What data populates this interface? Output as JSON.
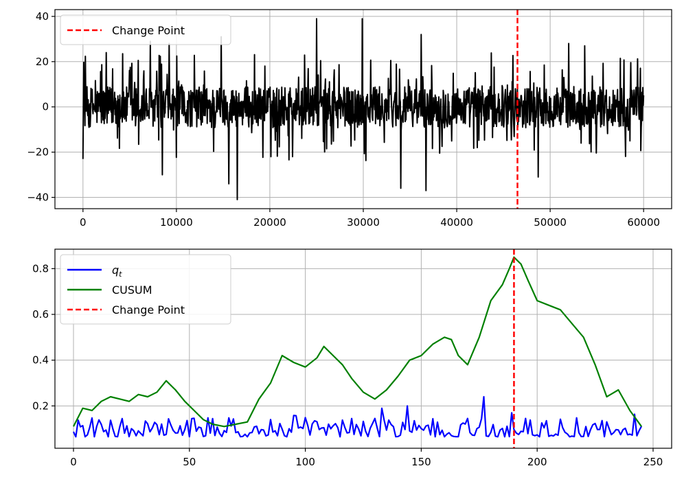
{
  "chart_data": [
    {
      "type": "line",
      "title": "",
      "xlabel": "",
      "ylabel": "",
      "xlim": [
        -3000,
        63000
      ],
      "ylim": [
        -45,
        43
      ],
      "xticks": [
        0,
        10000,
        20000,
        30000,
        40000,
        50000,
        60000
      ],
      "yticks": [
        -40,
        -20,
        0,
        20,
        40
      ],
      "grid": true,
      "legend_placement": "upper-left",
      "series": [
        {
          "kind": "signal",
          "color": "#000000",
          "x_range": [
            0,
            60000
          ],
          "value_range": [
            -41,
            39
          ],
          "peaks": [
            {
              "x": 25000,
              "y": 39
            },
            {
              "x": 29900,
              "y": 39
            },
            {
              "x": 16500,
              "y": -41
            },
            {
              "x": 36700,
              "y": -37
            },
            {
              "x": 34000,
              "y": -36
            },
            {
              "x": 15600,
              "y": -34
            },
            {
              "x": 8500,
              "y": -30
            },
            {
              "x": 48700,
              "y": -31
            },
            {
              "x": 7200,
              "y": 29
            },
            {
              "x": 9200,
              "y": 28
            },
            {
              "x": 14800,
              "y": 31
            },
            {
              "x": 36200,
              "y": 32
            },
            {
              "x": 52000,
              "y": 28
            },
            {
              "x": 53700,
              "y": 27
            }
          ]
        },
        {
          "name": "Change Point",
          "kind": "vline",
          "color": "#ff0000",
          "x": 46500
        }
      ]
    },
    {
      "type": "line",
      "title": "",
      "xlabel": "",
      "ylabel": "",
      "xlim": [
        -8,
        258
      ],
      "ylim": [
        0.015,
        0.885
      ],
      "xticks": [
        0,
        50,
        100,
        150,
        200,
        250
      ],
      "yticks": [
        0.2,
        0.4,
        0.6,
        0.8
      ],
      "grid": true,
      "legend_placement": "upper-left",
      "series": [
        {
          "name": "q",
          "name_subscript": "t",
          "kind": "signal",
          "color": "#0000ff",
          "x_range": [
            0,
            245
          ],
          "value_range": [
            0.05,
            0.24
          ],
          "peaks": [
            {
              "x": 177,
              "y": 0.24
            },
            {
              "x": 144,
              "y": 0.2
            },
            {
              "x": 133,
              "y": 0.19
            },
            {
              "x": 189,
              "y": 0.17
            }
          ]
        },
        {
          "name": "CUSUM",
          "kind": "line",
          "color": "#008000",
          "x": [
            0,
            4,
            8,
            12,
            16,
            20,
            24,
            28,
            32,
            36,
            40,
            44,
            48,
            52,
            56,
            60,
            65,
            70,
            75,
            80,
            85,
            90,
            95,
            100,
            105,
            108,
            112,
            116,
            120,
            125,
            130,
            135,
            140,
            145,
            150,
            155,
            160,
            163,
            166,
            170,
            175,
            180,
            185,
            188,
            190,
            193,
            196,
            200,
            205,
            210,
            215,
            220,
            225,
            230,
            235,
            240,
            245
          ],
          "y": [
            0.11,
            0.19,
            0.18,
            0.22,
            0.24,
            0.23,
            0.22,
            0.25,
            0.24,
            0.26,
            0.31,
            0.27,
            0.22,
            0.18,
            0.14,
            0.12,
            0.11,
            0.12,
            0.13,
            0.23,
            0.3,
            0.42,
            0.39,
            0.37,
            0.41,
            0.46,
            0.42,
            0.38,
            0.32,
            0.26,
            0.23,
            0.27,
            0.33,
            0.4,
            0.42,
            0.47,
            0.5,
            0.49,
            0.42,
            0.38,
            0.5,
            0.66,
            0.73,
            0.8,
            0.85,
            0.82,
            0.75,
            0.66,
            0.64,
            0.62,
            0.56,
            0.5,
            0.38,
            0.24,
            0.27,
            0.18,
            0.11
          ]
        },
        {
          "name": "Change Point",
          "kind": "vline",
          "color": "#ff0000",
          "x": 190
        }
      ]
    }
  ]
}
